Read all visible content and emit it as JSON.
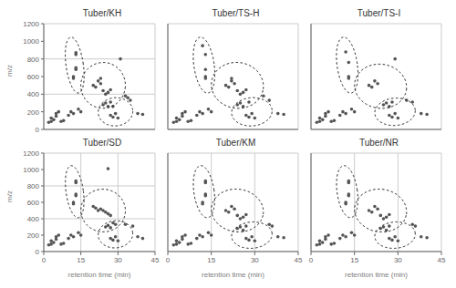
{
  "chart_data": [
    {
      "type": "scatter",
      "title": "Tuber/KH",
      "ylabel": "m/z",
      "tick_labels": "y",
      "x": [
        2,
        3,
        3,
        4,
        5,
        5,
        6,
        7,
        8,
        10,
        11,
        12,
        12,
        12,
        13,
        13,
        13,
        13,
        14,
        15,
        20,
        21,
        22,
        23,
        23,
        24,
        25,
        26,
        27,
        24,
        25,
        26,
        27,
        28,
        27,
        28,
        29,
        30,
        31,
        33,
        34,
        35,
        38,
        40
      ],
      "values": [
        80,
        90,
        130,
        110,
        150,
        180,
        200,
        90,
        100,
        160,
        200,
        180,
        600,
        580,
        700,
        680,
        870,
        850,
        230,
        200,
        500,
        480,
        550,
        520,
        580,
        440,
        400,
        420,
        450,
        280,
        300,
        260,
        310,
        260,
        160,
        140,
        180,
        130,
        800,
        380,
        360,
        330,
        180,
        170
      ],
      "color": "#555555",
      "ellipse_color": "#111111",
      "ellipses": [
        {
          "cx": 12.5,
          "cy": 730,
          "rx": 3.5,
          "ry": 320,
          "angle": 8
        },
        {
          "cx": 24,
          "cy": 500,
          "rx": 9,
          "ry": 260,
          "angle": -8
        },
        {
          "cx": 29,
          "cy": 200,
          "rx": 7,
          "ry": 160,
          "angle": 5
        }
      ],
      "xlim": [
        0,
        45
      ],
      "ylim": [
        0,
        1200
      ],
      "xticks": [
        0,
        15,
        30,
        45
      ],
      "yticks": [
        0,
        200,
        400,
        600,
        800,
        1000,
        1200
      ],
      "grid": true
    },
    {
      "type": "scatter",
      "title": "Tuber/TS-H",
      "tick_labels": false,
      "x": [
        2,
        3,
        3,
        4,
        5,
        5,
        6,
        7,
        8,
        10,
        11,
        12,
        12,
        13,
        13,
        13,
        13,
        14,
        15,
        20,
        21,
        22,
        22,
        23,
        24,
        25,
        26,
        27,
        24,
        25,
        26,
        28,
        27,
        28,
        29,
        30,
        33,
        35,
        38,
        40
      ],
      "values": [
        80,
        90,
        130,
        110,
        150,
        180,
        200,
        90,
        100,
        160,
        200,
        180,
        950,
        850,
        600,
        580,
        680,
        230,
        200,
        500,
        480,
        550,
        580,
        520,
        440,
        400,
        420,
        450,
        280,
        300,
        260,
        310,
        160,
        140,
        180,
        130,
        380,
        330,
        180,
        170
      ],
      "color": "#555555",
      "ellipse_color": "#111111",
      "ellipses": [
        {
          "cx": 12.5,
          "cy": 730,
          "rx": 3.5,
          "ry": 320,
          "angle": 8
        },
        {
          "cx": 24,
          "cy": 500,
          "rx": 9,
          "ry": 260,
          "angle": -8
        },
        {
          "cx": 29,
          "cy": 200,
          "rx": 7,
          "ry": 160,
          "angle": 5
        }
      ],
      "xlim": [
        0,
        45
      ],
      "ylim": [
        0,
        1200
      ],
      "xticks": [
        0,
        15,
        30,
        45
      ],
      "yticks": [
        0,
        200,
        400,
        600,
        800,
        1000,
        1200
      ],
      "grid": true
    },
    {
      "type": "scatter",
      "title": "Tuber/TS-I",
      "tick_labels": false,
      "x": [
        2,
        3,
        3,
        4,
        5,
        5,
        6,
        7,
        8,
        10,
        11,
        12,
        12,
        13,
        13,
        13,
        14,
        15,
        20,
        21,
        22,
        23,
        25,
        26,
        27,
        28,
        27,
        28,
        29,
        30,
        29,
        33,
        35,
        38,
        40
      ],
      "values": [
        80,
        90,
        130,
        110,
        150,
        180,
        200,
        90,
        100,
        160,
        200,
        180,
        880,
        760,
        600,
        580,
        230,
        200,
        500,
        480,
        550,
        520,
        280,
        300,
        260,
        310,
        160,
        140,
        180,
        130,
        800,
        330,
        310,
        180,
        170
      ],
      "color": "#555555",
      "ellipse_color": "#111111",
      "ellipses": [
        {
          "cx": 12.5,
          "cy": 730,
          "rx": 3.5,
          "ry": 320,
          "angle": 8
        },
        {
          "cx": 24,
          "cy": 490,
          "rx": 9,
          "ry": 250,
          "angle": -8
        },
        {
          "cx": 29,
          "cy": 200,
          "rx": 7,
          "ry": 155,
          "angle": 5
        }
      ],
      "xlim": [
        0,
        45
      ],
      "ylim": [
        0,
        1200
      ],
      "xticks": [
        0,
        15,
        30,
        45
      ],
      "yticks": [
        0,
        200,
        400,
        600,
        800,
        1000,
        1200
      ],
      "grid": true
    },
    {
      "type": "scatter",
      "title": "Tuber/SD",
      "xlabel": "retention time (min)",
      "ylabel": "m/z",
      "tick_labels": true,
      "x": [
        2,
        3,
        3,
        4,
        5,
        5,
        6,
        7,
        8,
        10,
        11,
        12,
        12,
        12,
        13,
        13,
        13,
        13,
        14,
        15,
        20,
        21,
        22,
        23,
        24,
        25,
        26,
        27,
        25,
        26,
        27,
        28,
        29,
        27,
        28,
        29,
        30,
        26,
        33,
        36,
        38,
        40
      ],
      "values": [
        80,
        90,
        130,
        110,
        150,
        180,
        200,
        90,
        100,
        160,
        200,
        180,
        600,
        580,
        700,
        680,
        860,
        840,
        230,
        200,
        550,
        530,
        500,
        520,
        500,
        480,
        460,
        440,
        300,
        320,
        290,
        350,
        330,
        160,
        140,
        180,
        130,
        1010,
        330,
        310,
        180,
        160
      ],
      "color": "#555555",
      "ellipse_color": "#111111",
      "ellipses": [
        {
          "cx": 12.5,
          "cy": 730,
          "rx": 3.5,
          "ry": 320,
          "angle": 8
        },
        {
          "cx": 24,
          "cy": 500,
          "rx": 9,
          "ry": 260,
          "angle": -8
        },
        {
          "cx": 29,
          "cy": 210,
          "rx": 7,
          "ry": 165,
          "angle": 5
        }
      ],
      "xlim": [
        0,
        45
      ],
      "ylim": [
        0,
        1200
      ],
      "xticks": [
        0,
        15,
        30,
        45
      ],
      "yticks": [
        0,
        200,
        400,
        600,
        800,
        1000,
        1200
      ],
      "grid": true
    },
    {
      "type": "scatter",
      "title": "Tuber/KM",
      "xlabel": "retention time (min)",
      "tick_labels": "x",
      "x": [
        2,
        3,
        3,
        4,
        5,
        5,
        6,
        7,
        8,
        10,
        11,
        12,
        12,
        12,
        13,
        13,
        13,
        13,
        14,
        15,
        20,
        21,
        22,
        23,
        24,
        25,
        26,
        27,
        24,
        25,
        26,
        27,
        27,
        28,
        29,
        30,
        35,
        36,
        38,
        40
      ],
      "values": [
        80,
        90,
        130,
        110,
        150,
        180,
        200,
        90,
        100,
        160,
        200,
        180,
        600,
        580,
        700,
        680,
        860,
        840,
        230,
        200,
        500,
        480,
        550,
        520,
        440,
        400,
        420,
        450,
        280,
        300,
        260,
        310,
        160,
        140,
        180,
        130,
        330,
        310,
        180,
        170
      ],
      "color": "#555555",
      "ellipse_color": "#111111",
      "ellipses": [
        {
          "cx": 12.5,
          "cy": 730,
          "rx": 3.5,
          "ry": 320,
          "angle": 8
        },
        {
          "cx": 24,
          "cy": 500,
          "rx": 9,
          "ry": 260,
          "angle": -8
        },
        {
          "cx": 29,
          "cy": 200,
          "rx": 7,
          "ry": 160,
          "angle": 5
        }
      ],
      "xlim": [
        0,
        45
      ],
      "ylim": [
        0,
        1200
      ],
      "xticks": [
        0,
        15,
        30,
        45
      ],
      "yticks": [
        0,
        200,
        400,
        600,
        800,
        1000,
        1200
      ],
      "grid": true
    },
    {
      "type": "scatter",
      "title": "Tuber/NR",
      "xlabel": "retention time (min)",
      "tick_labels": "x",
      "x": [
        2,
        3,
        3,
        4,
        5,
        5,
        6,
        7,
        8,
        10,
        11,
        12,
        12,
        12,
        13,
        13,
        13,
        13,
        14,
        15,
        20,
        21,
        22,
        23,
        24,
        25,
        26,
        27,
        24,
        25,
        26,
        27,
        27,
        28,
        29,
        30,
        35,
        36,
        38,
        40
      ],
      "values": [
        80,
        90,
        130,
        110,
        150,
        180,
        200,
        90,
        100,
        160,
        200,
        180,
        600,
        580,
        700,
        680,
        860,
        840,
        230,
        200,
        500,
        480,
        550,
        520,
        440,
        400,
        420,
        450,
        280,
        300,
        260,
        310,
        160,
        140,
        180,
        130,
        330,
        310,
        180,
        170
      ],
      "color": "#555555",
      "ellipse_color": "#111111",
      "ellipses": [
        {
          "cx": 12.5,
          "cy": 730,
          "rx": 3.5,
          "ry": 320,
          "angle": 8
        },
        {
          "cx": 24,
          "cy": 500,
          "rx": 9,
          "ry": 260,
          "angle": -8
        },
        {
          "cx": 29,
          "cy": 200,
          "rx": 7,
          "ry": 160,
          "angle": 5
        }
      ],
      "xlim": [
        0,
        45
      ],
      "ylim": [
        0,
        1200
      ],
      "xticks": [
        0,
        15,
        30,
        45
      ],
      "yticks": [
        0,
        200,
        400,
        600,
        800,
        1000,
        1200
      ],
      "grid": true
    }
  ]
}
